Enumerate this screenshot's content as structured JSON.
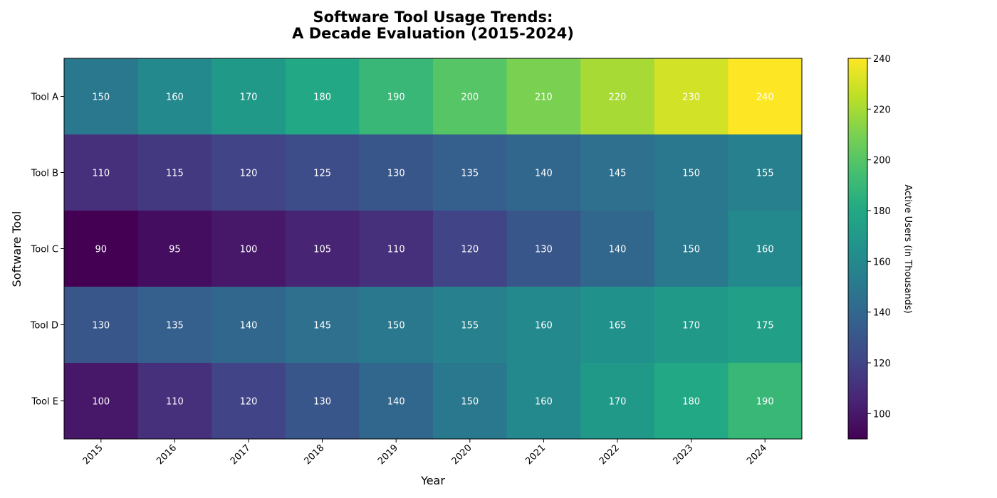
{
  "chart_data": {
    "type": "heatmap",
    "title_line1": "Software Tool Usage Trends:",
    "title_line2": "A Decade Evaluation (2015-2024)",
    "xlabel": "Year",
    "ylabel": "Software Tool",
    "colorbar_label": "Active Users (in Thousands)",
    "colormap": "viridis",
    "x": [
      "2015",
      "2016",
      "2017",
      "2018",
      "2019",
      "2020",
      "2021",
      "2022",
      "2023",
      "2024"
    ],
    "y": [
      "Tool A",
      "Tool B",
      "Tool C",
      "Tool D",
      "Tool E"
    ],
    "values": [
      [
        150,
        160,
        170,
        180,
        190,
        200,
        210,
        220,
        230,
        240
      ],
      [
        110,
        115,
        120,
        125,
        130,
        135,
        140,
        145,
        150,
        155
      ],
      [
        90,
        95,
        100,
        105,
        110,
        120,
        130,
        140,
        150,
        160
      ],
      [
        130,
        135,
        140,
        145,
        150,
        155,
        160,
        165,
        170,
        175
      ],
      [
        100,
        110,
        120,
        130,
        140,
        150,
        160,
        170,
        180,
        190
      ]
    ],
    "color_range": [
      90,
      240
    ],
    "colorbar_ticks": [
      100,
      120,
      140,
      160,
      180,
      200,
      220,
      240
    ],
    "grid": false
  }
}
